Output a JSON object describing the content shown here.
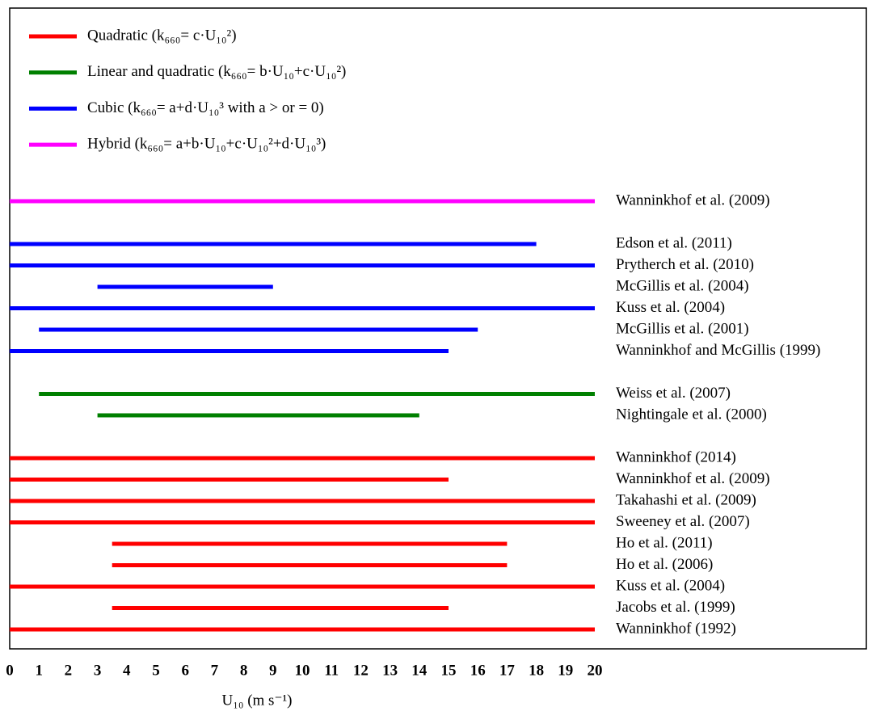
{
  "chart_data": {
    "type": "range",
    "x_label": "U₁₀ (m s⁻¹)",
    "xlim": [
      0,
      20
    ],
    "xticks": [
      0,
      1,
      2,
      3,
      4,
      5,
      6,
      7,
      8,
      9,
      10,
      11,
      12,
      13,
      14,
      15,
      16,
      17,
      18,
      19,
      20
    ],
    "series": [
      {
        "name": "Quadratic (k₆₆₀= c·U₁₀²)",
        "color": "#ff0000",
        "categories": [
          "Wanninkhof (2014)",
          "Wanninkhof et al. (2009)",
          "Takahashi et al. (2009)",
          "Sweeney et al. (2007)",
          "Ho et al. (2011)",
          "Ho et al.  (2006)",
          "Kuss et al. (2004)",
          "Jacobs et al. (1999)",
          "Wanninkhof (1992)"
        ],
        "start": [
          0,
          0,
          0,
          0,
          3.5,
          3.5,
          0,
          3.5,
          0
        ],
        "end": [
          20,
          15,
          20,
          20,
          17,
          17,
          20,
          15,
          20
        ]
      },
      {
        "name": "Linear and quadratic (k₆₆₀= b·U₁₀+c·U₁₀²)",
        "color": "#008000",
        "categories": [
          "Weiss et al. (2007)",
          "Nightingale et al. (2000)"
        ],
        "start": [
          1,
          3
        ],
        "end": [
          20,
          14
        ]
      },
      {
        "name": "Cubic (k₆₆₀= a+d·U₁₀³ with a > or = 0)",
        "color": "#0000ff",
        "categories": [
          "Edson et al. (2011)",
          "Prytherch et al. (2010)",
          "McGillis et al. (2004)",
          "Kuss et al. (2004)",
          "McGillis et al. (2001)",
          "Wanninkhof and McGillis (1999)"
        ],
        "start": [
          0,
          0,
          3,
          0,
          1,
          0
        ],
        "end": [
          18,
          20,
          9,
          20,
          16,
          15
        ]
      },
      {
        "name": "Hybrid (k₆₆₀= a+b·U₁₀+c·U₁₀²+d·U₁₀³)",
        "color": "#ff00ff",
        "categories": [
          "Wanninkhof et al. (2009)"
        ],
        "start": [
          0
        ],
        "end": [
          20
        ]
      }
    ]
  }
}
